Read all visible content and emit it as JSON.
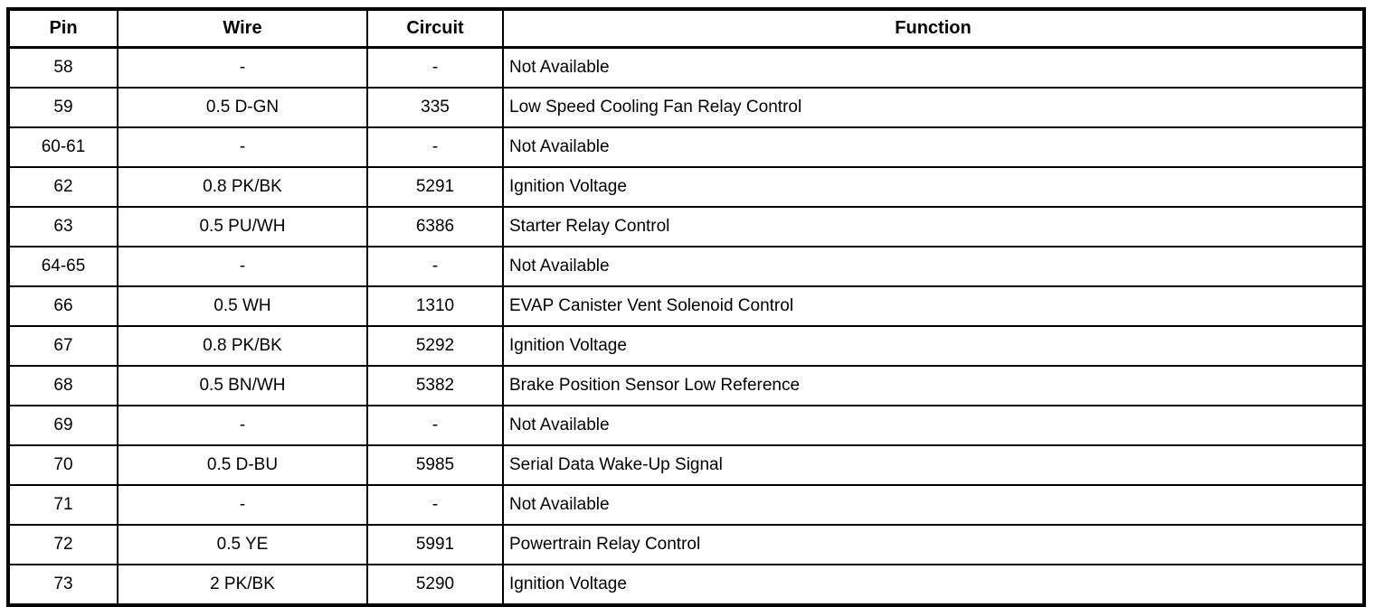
{
  "table": {
    "columns": [
      {
        "key": "pin",
        "label": "Pin"
      },
      {
        "key": "wire",
        "label": "Wire"
      },
      {
        "key": "circuit",
        "label": "Circuit"
      },
      {
        "key": "function",
        "label": "Function"
      }
    ],
    "rows": [
      {
        "pin": "58",
        "wire": "-",
        "circuit": "-",
        "function": "Not Available"
      },
      {
        "pin": "59",
        "wire": "0.5 D-GN",
        "circuit": "335",
        "function": "Low Speed Cooling Fan Relay Control"
      },
      {
        "pin": "60-61",
        "wire": "-",
        "circuit": "-",
        "function": "Not Available"
      },
      {
        "pin": "62",
        "wire": "0.8 PK/BK",
        "circuit": "5291",
        "function": "Ignition Voltage"
      },
      {
        "pin": "63",
        "wire": "0.5 PU/WH",
        "circuit": "6386",
        "function": "Starter Relay Control"
      },
      {
        "pin": "64-65",
        "wire": "-",
        "circuit": "-",
        "function": "Not Available"
      },
      {
        "pin": "66",
        "wire": "0.5 WH",
        "circuit": "1310",
        "function": "EVAP Canister Vent Solenoid Control"
      },
      {
        "pin": "67",
        "wire": "0.8 PK/BK",
        "circuit": "5292",
        "function": "Ignition Voltage"
      },
      {
        "pin": "68",
        "wire": "0.5 BN/WH",
        "circuit": "5382",
        "function": "Brake Position Sensor Low Reference"
      },
      {
        "pin": "69",
        "wire": "-",
        "circuit": "-",
        "function": "Not Available"
      },
      {
        "pin": "70",
        "wire": "0.5 D-BU",
        "circuit": "5985",
        "function": "Serial Data Wake-Up Signal"
      },
      {
        "pin": "71",
        "wire": "-",
        "circuit": "-",
        "function": "Not Available"
      },
      {
        "pin": "72",
        "wire": "0.5 YE",
        "circuit": "5991",
        "function": "Powertrain Relay Control"
      },
      {
        "pin": "73",
        "wire": "2 PK/BK",
        "circuit": "5290",
        "function": "Ignition Voltage"
      }
    ],
    "colors": {
      "border": "#000000",
      "text": "#000000",
      "background": "#ffffff"
    }
  }
}
